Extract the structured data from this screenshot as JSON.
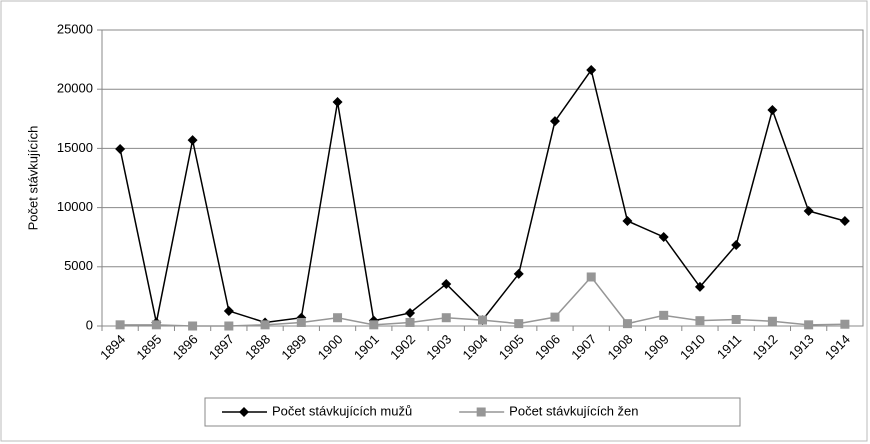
{
  "chart_data": {
    "type": "line",
    "ylabel": "Počet stávkujících",
    "categories": [
      "1894",
      "1895",
      "1896",
      "1897",
      "1898",
      "1899",
      "1900",
      "1901",
      "1902",
      "1903",
      "1904",
      "1905",
      "1906",
      "1907",
      "1908",
      "1909",
      "1910",
      "1911",
      "1912",
      "1913",
      "1914"
    ],
    "series": [
      {
        "name": "Počet stávkujících mužů",
        "color": "#000000",
        "marker": "diamond",
        "values": [
          14950,
          300,
          15700,
          1270,
          300,
          700,
          18920,
          450,
          1100,
          3550,
          500,
          4400,
          17300,
          21620,
          8870,
          7520,
          3300,
          6840,
          18240,
          9710,
          8870
        ]
      },
      {
        "name": "Počet stávkujících žen",
        "color": "#969696",
        "marker": "square",
        "values": [
          100,
          100,
          0,
          0,
          100,
          300,
          700,
          100,
          300,
          700,
          500,
          200,
          750,
          4140,
          200,
          900,
          450,
          550,
          400,
          100,
          150
        ]
      }
    ],
    "ylim": [
      0,
      25000
    ],
    "yticks": [
      0,
      5000,
      10000,
      15000,
      20000,
      25000
    ],
    "grid": true,
    "legend": "bottom"
  }
}
